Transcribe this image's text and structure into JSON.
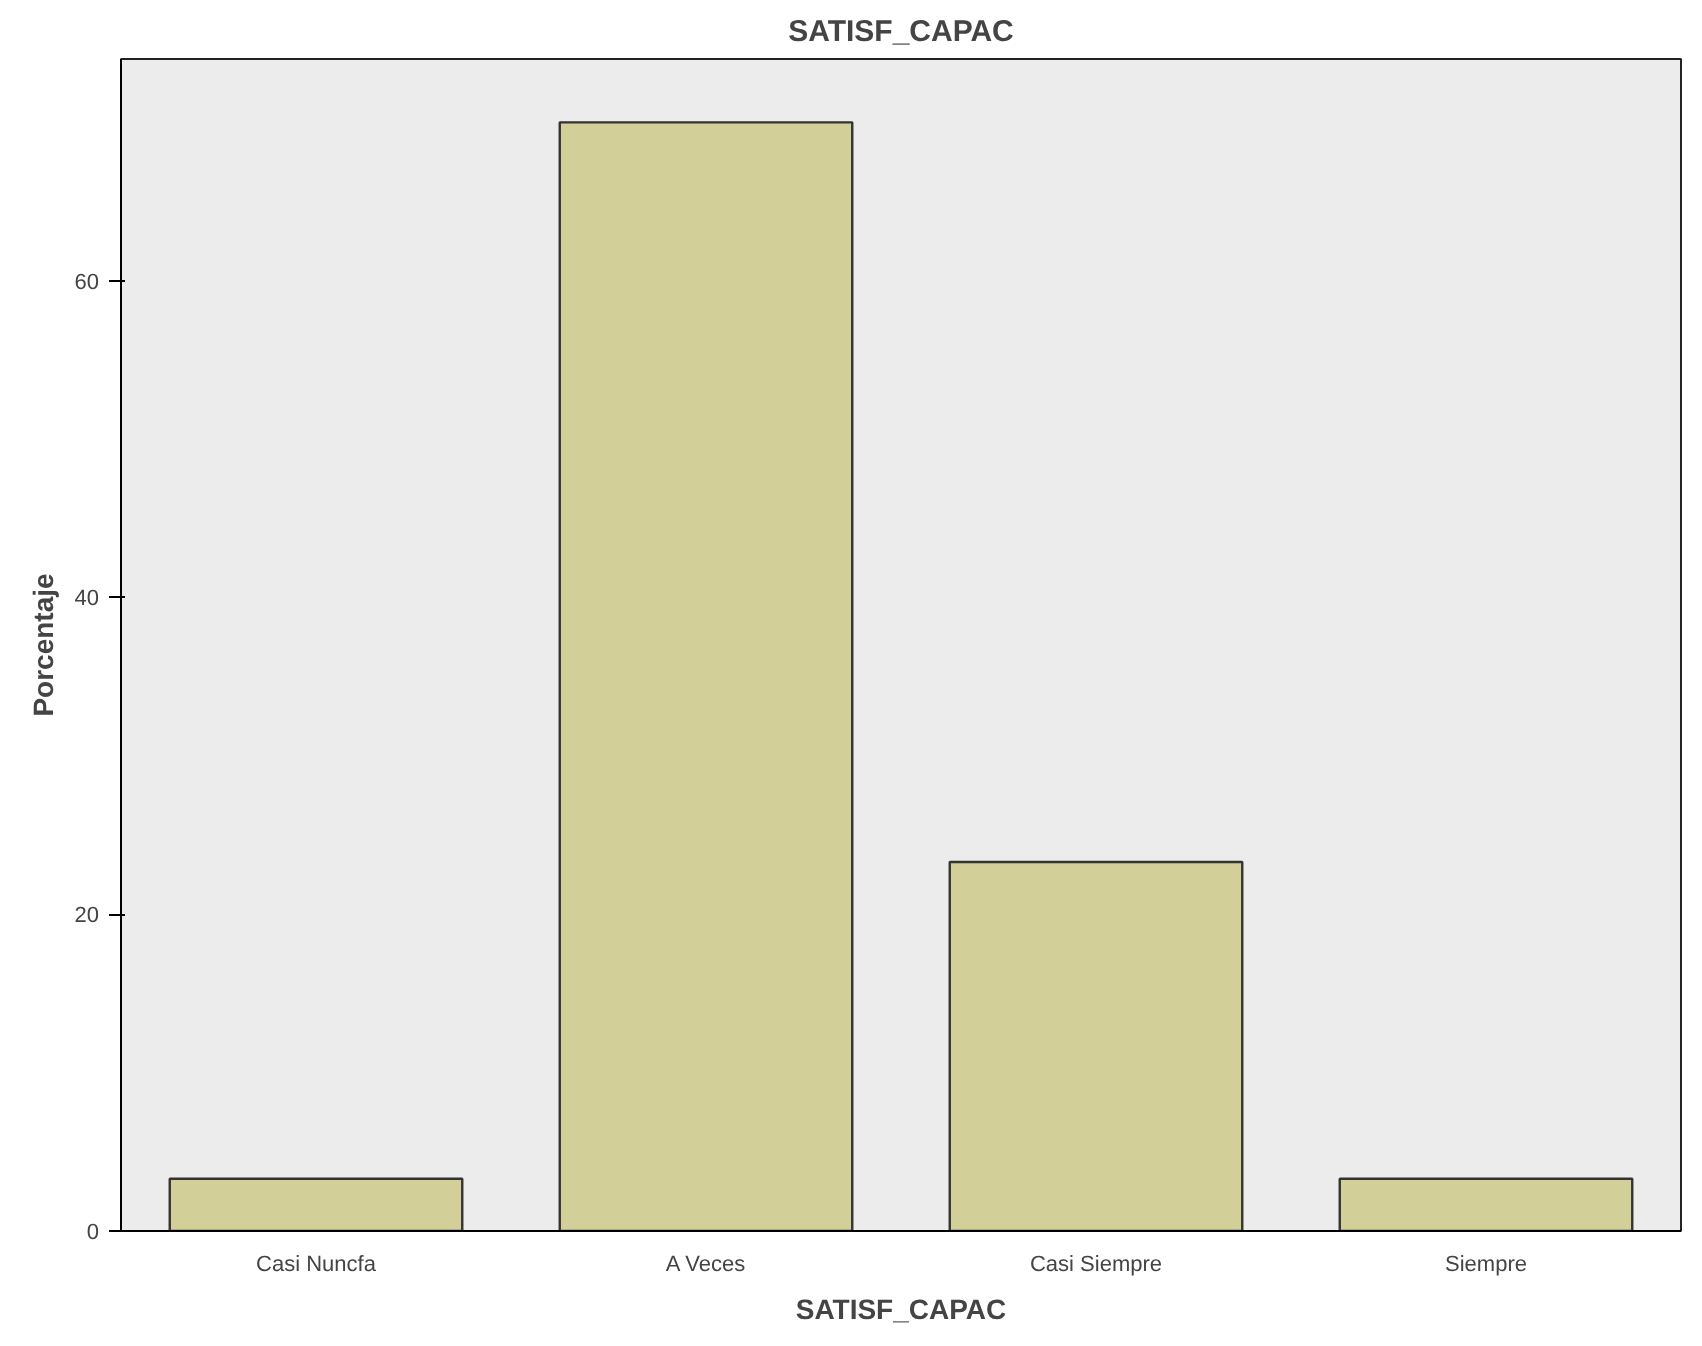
{
  "chart_data": {
    "type": "bar",
    "title": "SATISF_CAPAC",
    "xlabel": "SATISF_CAPAC",
    "ylabel": "Porcentaje",
    "categories": [
      "Casi Nuncfa",
      "A Veces",
      "Casi Siempre",
      "Siempre"
    ],
    "values": [
      3.3,
      70.0,
      23.3,
      3.3
    ],
    "color": "#d3cf98",
    "ylim": [
      0,
      74
    ],
    "yticks": [
      0,
      20,
      40,
      60
    ],
    "grid": false
  }
}
